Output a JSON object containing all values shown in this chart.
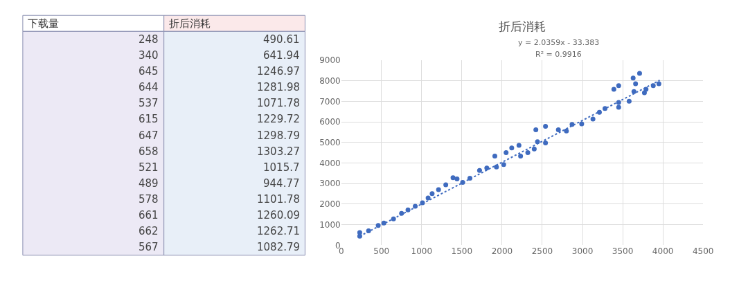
{
  "chart_data": [
    {
      "type": "other",
      "categories": [
        "下载量",
        "折后消耗"
      ],
      "annotations": [
        "248",
        "490.61",
        "340",
        "641.94",
        "645",
        "1246.97",
        "644",
        "1281.98",
        "537",
        "1071.78",
        "615",
        "1229.72",
        "647",
        "1298.79",
        "658",
        "1303.27",
        "521",
        "1015.7",
        "489",
        "944.77",
        "578",
        "1101.78",
        "661",
        "1260.09",
        "662",
        "1262.71",
        "567",
        "1082.79"
      ]
    },
    {
      "type": "scatter",
      "title": "折后消耗",
      "xlim": [
        0,
        4500
      ],
      "xticks": [
        0,
        500,
        1000,
        1500,
        2000,
        2500,
        3000,
        3500,
        4000,
        4500
      ],
      "ylim": [
        0,
        9000
      ],
      "yticks": [
        0,
        1000,
        2000,
        3000,
        4000,
        5000,
        6000,
        7000,
        8000,
        9000
      ],
      "grid": true,
      "annotations": [
        "y = 2.0359x - 33.383",
        "R² = 0.9916"
      ],
      "series": [
        {
          "type": "scatter",
          "marker": "circle",
          "color": "#3f6bbf",
          "x": [
            230,
            230,
            340,
            460,
            530,
            650,
            750,
            830,
            920,
            1010,
            1080,
            1130,
            1210,
            1300,
            1390,
            1440,
            1510,
            1600,
            1720,
            1810,
            1910,
            1930,
            2020,
            2050,
            2120,
            2210,
            2230,
            2320,
            2400,
            2420,
            2540,
            2440,
            2540,
            2700,
            2800,
            2870,
            2990,
            3130,
            3210,
            3280,
            3390,
            3450,
            3450,
            3450,
            3580,
            3630,
            3640,
            3660,
            3710,
            3770,
            3790,
            3880,
            3950
          ],
          "values": [
            440,
            620,
            700,
            960,
            1080,
            1280,
            1550,
            1720,
            1900,
            2070,
            2300,
            2510,
            2710,
            2940,
            3290,
            3230,
            3060,
            3260,
            3640,
            3760,
            4340,
            3810,
            3930,
            4510,
            4740,
            4860,
            4340,
            4510,
            4690,
            5620,
            5790,
            5040,
            4980,
            5620,
            5560,
            5880,
            5910,
            6140,
            6470,
            6660,
            7590,
            7770,
            6950,
            6720,
            7010,
            8140,
            7480,
            7860,
            8370,
            7420,
            7590,
            7770,
            7860
          ]
        },
        {
          "type": "line",
          "line_style": "dotted",
          "color": "#3f6bbf",
          "x": [
            230,
            3960
          ],
          "values": [
            440,
            8030
          ]
        }
      ]
    }
  ]
}
